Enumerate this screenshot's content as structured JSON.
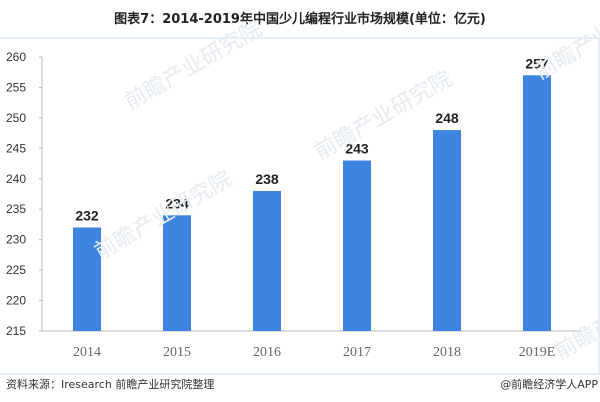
{
  "chart_data": {
    "type": "bar",
    "title": "图表7：2014-2019年中国少儿编程行业市场规模(单位：亿元)",
    "categories": [
      "2014",
      "2015",
      "2016",
      "2017",
      "2018",
      "2019E"
    ],
    "values": [
      232,
      234,
      238,
      243,
      248,
      257
    ],
    "ylim": [
      215,
      260
    ],
    "yticks": [
      215,
      220,
      225,
      230,
      235,
      240,
      245,
      250,
      255,
      260
    ],
    "grid": false,
    "bar_color": "#3d85e0",
    "xlabel": "",
    "ylabel": ""
  },
  "footer": {
    "source": "资料来源：Iresearch 前瞻产业研究院整理",
    "credit": "@前瞻经济学人APP"
  },
  "watermark": "前瞻产业研究院"
}
